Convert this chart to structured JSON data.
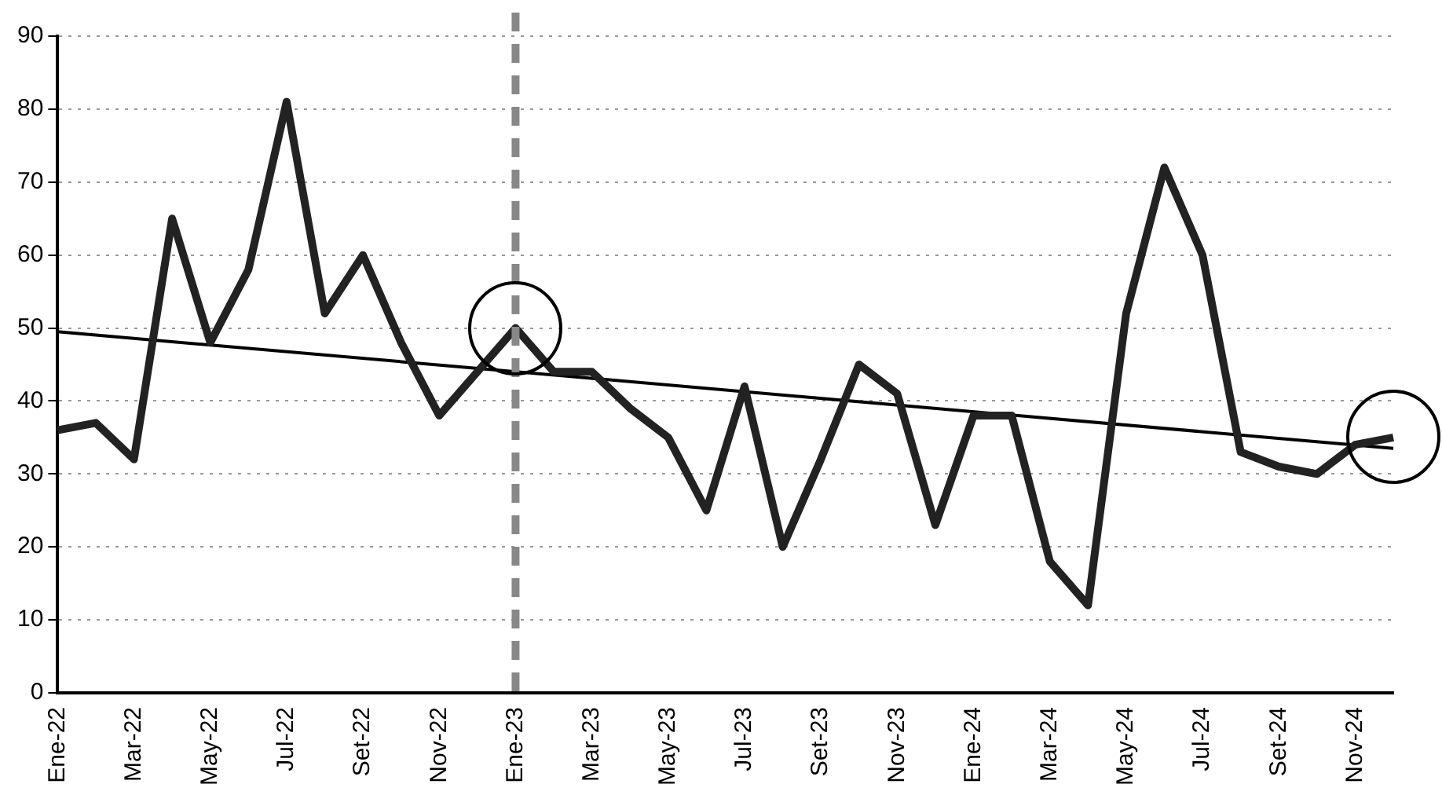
{
  "chart_data": {
    "type": "line",
    "categories": [
      "Ene-22",
      null,
      "Mar-22",
      null,
      "May-22",
      null,
      "Jul-22",
      null,
      "Set-22",
      null,
      "Nov-22",
      null,
      "Ene-23",
      null,
      "Mar-23",
      null,
      "May-23",
      null,
      "Jul-23",
      null,
      "Set-23",
      null,
      "Nov-23",
      null,
      "Ene-24",
      null,
      "Mar-24",
      null,
      "May-24",
      null,
      "Jul-24",
      null,
      "Set-24",
      null,
      "Nov-24",
      null
    ],
    "series": [
      {
        "color": "#222222",
        "values": [
          36,
          37,
          32,
          65,
          48,
          58,
          81,
          52,
          60,
          48,
          38,
          44,
          50,
          44,
          44,
          39,
          35,
          25,
          42,
          20,
          32,
          45,
          41,
          23,
          38,
          38,
          18,
          12,
          52,
          72,
          60,
          33,
          31,
          30,
          34,
          35
        ]
      },
      {
        "color": "#000000",
        "values": [
          49.5,
          null,
          null,
          null,
          null,
          null,
          null,
          null,
          null,
          null,
          null,
          null,
          null,
          null,
          null,
          null,
          null,
          null,
          null,
          null,
          null,
          null,
          null,
          null,
          null,
          null,
          null,
          null,
          null,
          null,
          null,
          null,
          null,
          null,
          null,
          33.5
        ]
      }
    ],
    "ylim": [
      0,
      90
    ],
    "yticks": [
      0,
      10,
      20,
      30,
      40,
      50,
      60,
      70,
      80,
      90
    ],
    "grid": "y",
    "legend": false,
    "marker": "none",
    "line_style": "solid",
    "ref_lines": [
      {
        "axis": "x",
        "value": "Ene-23",
        "color": "#888888",
        "line_style": "dashed"
      }
    ]
  }
}
